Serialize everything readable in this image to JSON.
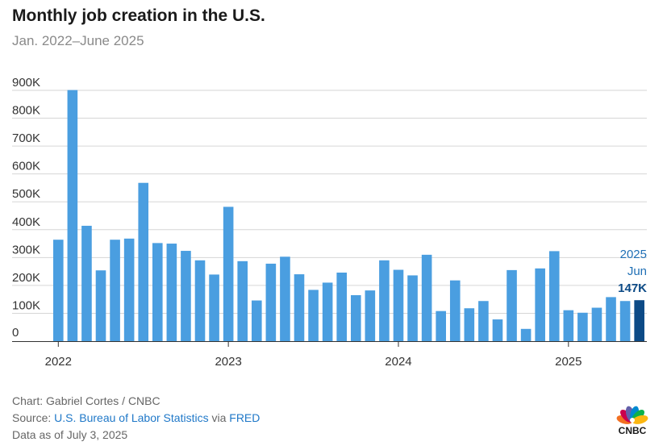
{
  "header": {
    "title": "Monthly job creation in the U.S.",
    "subtitle": "Jan. 2022–June 2025"
  },
  "chart_data": {
    "type": "bar",
    "title": "Monthly job creation in the U.S.",
    "subtitle": "Jan. 2022–June 2025",
    "xlabel": "",
    "ylabel": "",
    "ylim": [
      0,
      900000
    ],
    "y_ticks": [
      {
        "value": 0,
        "label": "0"
      },
      {
        "value": 100000,
        "label": "100K"
      },
      {
        "value": 200000,
        "label": "200K"
      },
      {
        "value": 300000,
        "label": "300K"
      },
      {
        "value": 400000,
        "label": "400K"
      },
      {
        "value": 500000,
        "label": "500K"
      },
      {
        "value": 600000,
        "label": "600K"
      },
      {
        "value": 700000,
        "label": "700K"
      },
      {
        "value": 800000,
        "label": "800K"
      },
      {
        "value": 900000,
        "label": "900K"
      }
    ],
    "x_ticks": [
      {
        "index": 0,
        "label": "2022"
      },
      {
        "index": 12,
        "label": "2023"
      },
      {
        "index": 24,
        "label": "2024"
      },
      {
        "index": 36,
        "label": "2025"
      }
    ],
    "grid": true,
    "categories": [
      "2022-01",
      "2022-02",
      "2022-03",
      "2022-04",
      "2022-05",
      "2022-06",
      "2022-07",
      "2022-08",
      "2022-09",
      "2022-10",
      "2022-11",
      "2022-12",
      "2023-01",
      "2023-02",
      "2023-03",
      "2023-04",
      "2023-05",
      "2023-06",
      "2023-07",
      "2023-08",
      "2023-09",
      "2023-10",
      "2023-11",
      "2023-12",
      "2024-01",
      "2024-02",
      "2024-03",
      "2024-04",
      "2024-05",
      "2024-06",
      "2024-07",
      "2024-08",
      "2024-09",
      "2024-10",
      "2024-11",
      "2024-12",
      "2025-01",
      "2025-02",
      "2025-03",
      "2025-04",
      "2025-05",
      "2025-06"
    ],
    "values": [
      364000,
      901000,
      414000,
      254000,
      364000,
      368000,
      568000,
      352000,
      350000,
      324000,
      290000,
      239000,
      482000,
      287000,
      146000,
      278000,
      303000,
      240000,
      184000,
      210000,
      246000,
      165000,
      182000,
      290000,
      256000,
      236000,
      310000,
      108000,
      218000,
      118000,
      144000,
      78000,
      255000,
      44000,
      261000,
      323000,
      111000,
      102000,
      120000,
      158000,
      144000,
      147000
    ],
    "bar_color": "#4a9ee0",
    "highlight_color": "#0c4a86",
    "highlight_index": 41,
    "annotation": {
      "year": "2025",
      "month": "Jun",
      "value_label": "147K"
    }
  },
  "footer": {
    "chart_prefix": "Chart: ",
    "chart_credit": "Gabriel Cortes / CNBC",
    "source_prefix": "Source: ",
    "source_link": "U.S. Bureau of Labor Statistics",
    "source_via": " via ",
    "source_link2": "FRED",
    "data_note": "Data as of July 3, 2025"
  },
  "logo": {
    "text": "CNBC",
    "icon": "peacock-icon",
    "colors": [
      "#f37021",
      "#cc004c",
      "#6460aa",
      "#0089d0",
      "#0db14b",
      "#fcb711"
    ]
  }
}
